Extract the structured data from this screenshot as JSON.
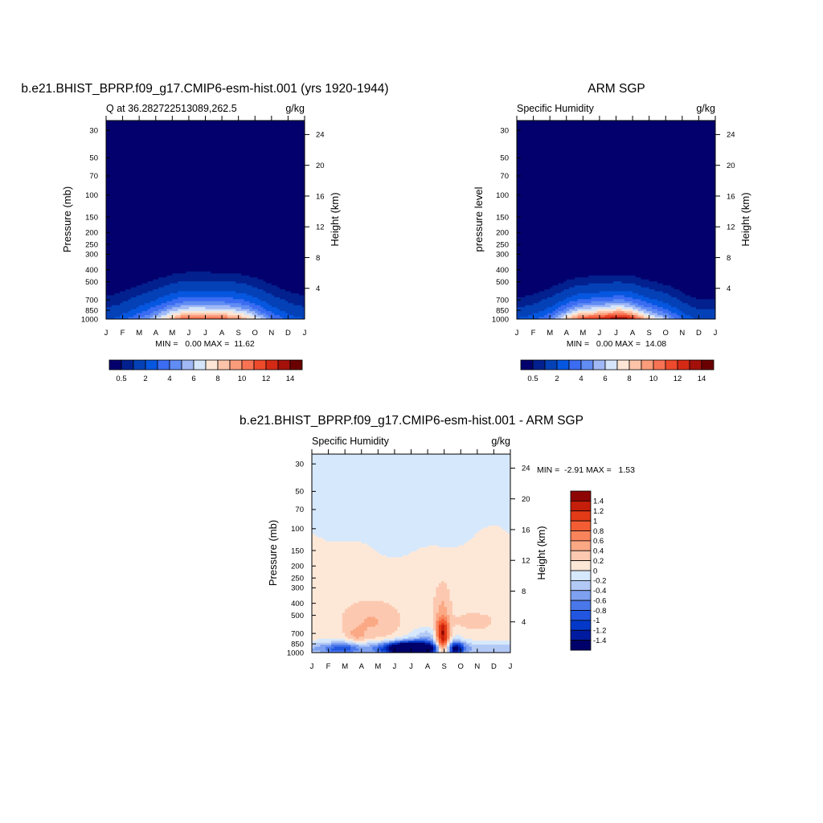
{
  "colors": {
    "sequential": [
      "#03006d",
      "#02208e",
      "#0441b7",
      "#0657e0",
      "#3b6cf2",
      "#608cf3",
      "#a0b8f5",
      "#d5e5fa",
      "#fde6d5",
      "#fdc4aa",
      "#fb9c7a",
      "#f87353",
      "#ee4a2c",
      "#d42a15",
      "#a4100a",
      "#6a0001"
    ],
    "diverging": [
      "#00006a",
      "#001aa0",
      "#0438c8",
      "#2255e0",
      "#4a78ea",
      "#7ea0f0",
      "#b2c9f6",
      "#d6e8fc",
      "#fde8d8",
      "#fcc9b0",
      "#fba885",
      "#f9845c",
      "#f45d33",
      "#e33a18",
      "#c51e0a",
      "#8e0604"
    ]
  },
  "panels": [
    {
      "id": "model",
      "title": "b.e21.BHIST_BPRP.f09_g17.CMIP6-esm-hist.001 (yrs 1920-1944)",
      "left_label": "Q at 36.282722513089,262.5",
      "right_label": "g/kg",
      "ylabel": "Pressure (mb)",
      "y2label": "Height (km)",
      "stats": "MIN =   0.00 MAX =  11.62"
    },
    {
      "id": "obs",
      "title": "ARM SGP",
      "left_label": "Specific Humidity",
      "right_label": "g/kg",
      "ylabel": "pressure level",
      "y2label": "Height (km)",
      "stats": "MIN =   0.00 MAX =  14.08"
    },
    {
      "id": "diff",
      "title": "b.e21.BHIST_BPRP.f09_g17.CMIP6-esm-hist.001 - ARM SGP",
      "left_label": "Specific Humidity",
      "right_label": "g/kg",
      "ylabel": "Pressure (mb)",
      "y2label": "Height (km)",
      "stats": "MIN =  -2.91 MAX =   1.53"
    }
  ],
  "colorbar_seq_labels": [
    "0.5",
    "2",
    "4",
    "6",
    "8",
    "10",
    "12",
    "14"
  ],
  "colorbar_div_labels": [
    "1.4",
    "1.2",
    "1",
    "0.8",
    "0.6",
    "0.4",
    "0.2",
    "0",
    "-0.2",
    "-0.4",
    "-0.6",
    "-0.8",
    "-1",
    "-1.2",
    "-1.4"
  ],
  "chart_data": [
    {
      "type": "heatmap",
      "title": "b.e21.BHIST_BPRP.f09_g17.CMIP6-esm-hist.001 (yrs 1920-1944)",
      "x": [
        "J",
        "F",
        "M",
        "A",
        "M",
        "J",
        "J",
        "A",
        "S",
        "O",
        "N",
        "D",
        "J"
      ],
      "xlabel": "",
      "ylabel": "Pressure (mb)",
      "y2label": "Height (km)",
      "yticks": [
        30,
        50,
        70,
        100,
        150,
        200,
        250,
        300,
        400,
        500,
        700,
        850,
        1000
      ],
      "y2ticks": [
        4,
        8,
        12,
        16,
        20,
        24
      ],
      "ylim": [
        1000,
        25
      ],
      "yscale": "log",
      "units": "g/kg",
      "min": 0.0,
      "max": 11.62,
      "surface_peak": {
        "month": 7.2,
        "value": 11.62
      }
    },
    {
      "type": "heatmap",
      "title": "ARM SGP",
      "x": [
        "J",
        "F",
        "M",
        "A",
        "M",
        "J",
        "J",
        "A",
        "S",
        "O",
        "N",
        "D",
        "J"
      ],
      "xlabel": "",
      "ylabel": "pressure level",
      "y2label": "Height (km)",
      "yticks": [
        30,
        50,
        70,
        100,
        150,
        200,
        250,
        300,
        400,
        500,
        700,
        850,
        1000
      ],
      "y2ticks": [
        4,
        8,
        12,
        16,
        20,
        24
      ],
      "ylim": [
        1000,
        25
      ],
      "yscale": "log",
      "units": "g/kg",
      "min": 0.0,
      "max": 14.08,
      "surface_peak": {
        "month": 6.8,
        "value": 14.08
      }
    },
    {
      "type": "heatmap",
      "title": "b.e21.BHIST_BPRP.f09_g17.CMIP6-esm-hist.001 - ARM SGP",
      "x": [
        "J",
        "F",
        "M",
        "A",
        "M",
        "J",
        "J",
        "A",
        "S",
        "O",
        "N",
        "D",
        "J"
      ],
      "xlabel": "",
      "ylabel": "Pressure (mb)",
      "y2label": "Height (km)",
      "yticks": [
        30,
        50,
        70,
        100,
        150,
        200,
        250,
        300,
        400,
        500,
        700,
        850,
        1000
      ],
      "y2ticks": [
        4,
        8,
        12,
        16,
        20,
        24
      ],
      "ylim": [
        1000,
        25
      ],
      "yscale": "log",
      "units": "g/kg",
      "min": -2.91,
      "max": 1.53,
      "contour_levels": [
        -1.4,
        -1.2,
        -1,
        -0.8,
        -0.6,
        -0.4,
        -0.2,
        0,
        0.2,
        0.4,
        0.6,
        0.8,
        1,
        1.2,
        1.4
      ]
    }
  ]
}
